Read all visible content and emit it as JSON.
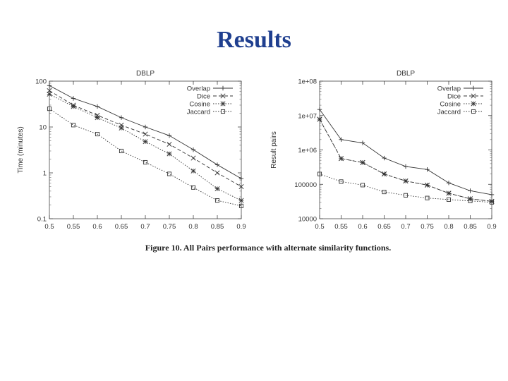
{
  "title": "Results",
  "caption": "Figure 10.  All Pairs performance with alternate similarity functions.",
  "chart_data": [
    {
      "type": "line",
      "title": "DBLP",
      "ylabel": "Time (minutes)",
      "xlabel": "",
      "yscale": "log",
      "ylim": [
        0.1,
        100
      ],
      "xlim": [
        0.5,
        0.9
      ],
      "x": [
        0.5,
        0.55,
        0.6,
        0.65,
        0.7,
        0.75,
        0.8,
        0.85,
        0.9
      ],
      "x_ticks": [
        "0.5",
        "0.55",
        "0.6",
        "0.65",
        "0.7",
        "0.75",
        "0.8",
        "0.85",
        "0.9"
      ],
      "y_ticks": [
        "0.1",
        "1",
        "10",
        "100"
      ],
      "legend_position": "top-right",
      "series": [
        {
          "name": "Overlap",
          "marker": "+",
          "dash": "solid",
          "values": [
            80,
            42,
            28,
            16,
            10,
            6.5,
            3.2,
            1.5,
            0.75
          ]
        },
        {
          "name": "Dice",
          "marker": "x",
          "dash": "dashed",
          "values": [
            62,
            30,
            18,
            11,
            7,
            4.2,
            2.1,
            1.0,
            0.5
          ]
        },
        {
          "name": "Cosine",
          "marker": "*",
          "dash": "dotted",
          "values": [
            52,
            28,
            16,
            9.5,
            4.8,
            2.6,
            1.1,
            0.45,
            0.25
          ]
        },
        {
          "name": "Jaccard",
          "marker": "square",
          "dash": "dotted",
          "values": [
            25,
            11,
            7,
            3,
            1.7,
            0.95,
            0.48,
            0.25,
            0.19
          ]
        }
      ]
    },
    {
      "type": "line",
      "title": "DBLP",
      "ylabel": "Result pairs",
      "xlabel": "",
      "yscale": "log",
      "ylim": [
        10000,
        100000000
      ],
      "xlim": [
        0.5,
        0.9
      ],
      "x": [
        0.5,
        0.55,
        0.6,
        0.65,
        0.7,
        0.75,
        0.8,
        0.85,
        0.9
      ],
      "x_ticks": [
        "0.5",
        "0.55",
        "0.6",
        "0.65",
        "0.7",
        "0.75",
        "0.8",
        "0.85",
        "0.9"
      ],
      "y_ticks": [
        "10000",
        "100000",
        "1e+06",
        "1e+07",
        "1e+08"
      ],
      "legend_position": "top-right",
      "series": [
        {
          "name": "Overlap",
          "marker": "+",
          "dash": "solid",
          "values": [
            15000000,
            2000000,
            1600000,
            580000,
            330000,
            270000,
            110000,
            65000,
            50000
          ]
        },
        {
          "name": "Dice",
          "marker": "x",
          "dash": "dashed",
          "values": [
            7800000,
            560000,
            430000,
            200000,
            125000,
            95000,
            55000,
            38000,
            32000
          ]
        },
        {
          "name": "Cosine",
          "marker": "*",
          "dash": "dotted",
          "values": [
            7800000,
            560000,
            430000,
            200000,
            125000,
            95000,
            55000,
            38000,
            32000
          ]
        },
        {
          "name": "Jaccard",
          "marker": "square",
          "dash": "dotted",
          "values": [
            200000,
            120000,
            95000,
            60000,
            48000,
            40000,
            36000,
            33000,
            30000
          ]
        }
      ]
    }
  ]
}
